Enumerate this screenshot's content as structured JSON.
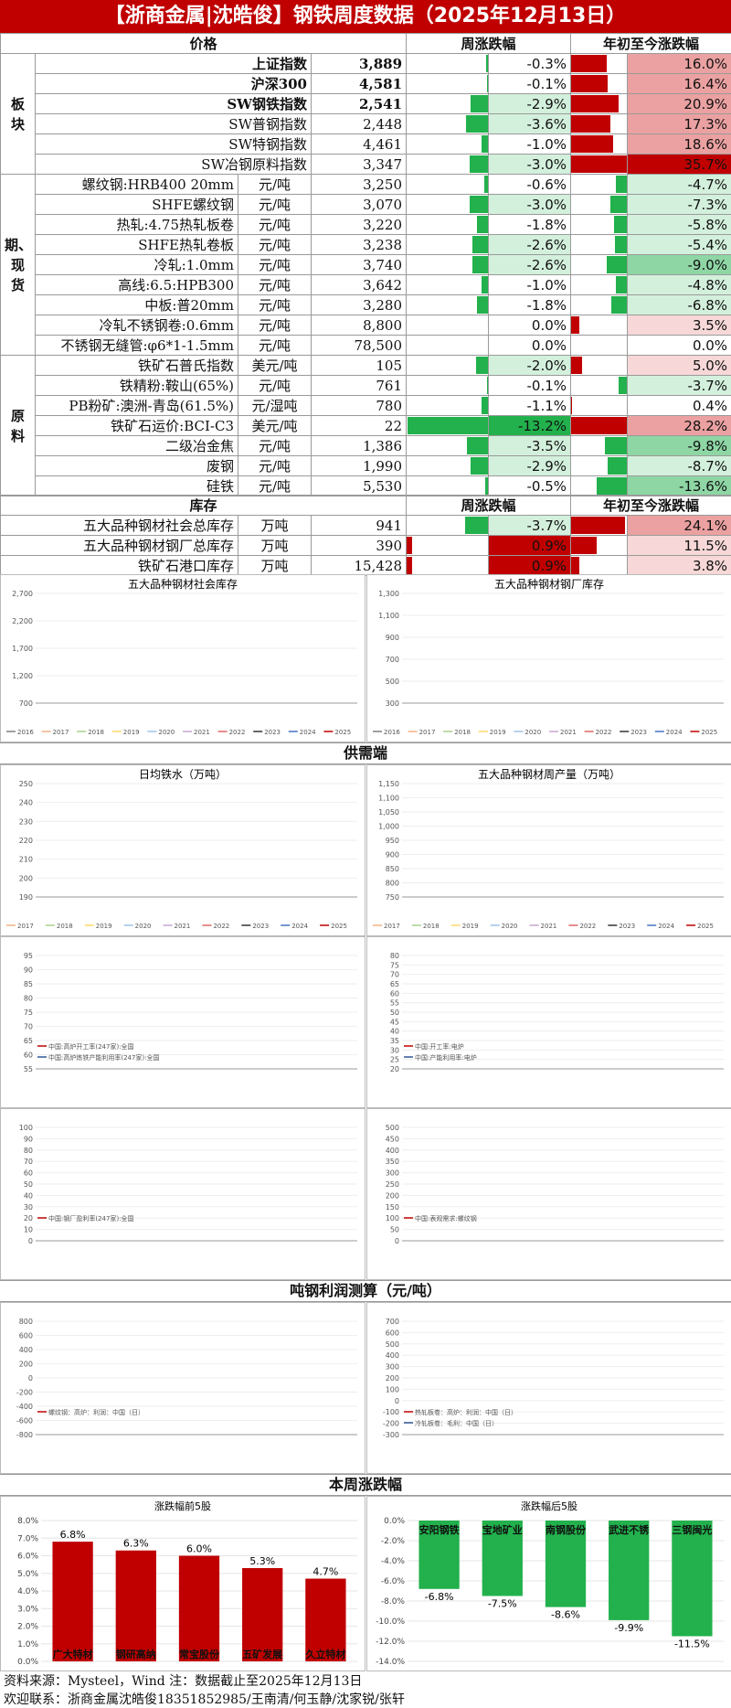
{
  "header": {
    "title": "【浙商金属|沈皓俊】钢铁周度数据（2025年12月13日）"
  },
  "table_head": {
    "price": "价格",
    "weekly": "周涨跌幅",
    "ytd": "年初至今涨跌幅"
  },
  "groups": {
    "board": "板块",
    "futures": "期、现货",
    "raw": "原料"
  },
  "colors": {
    "red": "#c00000",
    "green": "#22b14c",
    "pinkLight": "#f7d7d7",
    "pinkMid": "#eba1a1",
    "greenLight": "#d3f0dc",
    "greenMid": "#8ed6a4"
  },
  "rows": [
    {
      "name": "上证指数",
      "unit": "",
      "value": "3,889",
      "w": "-0.3%",
      "y": "16.0%",
      "wv": -0.3,
      "yv": 16.0,
      "bold": true,
      "grp": "board"
    },
    {
      "name": "沪深300",
      "unit": "",
      "value": "4,581",
      "w": "-0.1%",
      "y": "16.4%",
      "wv": -0.1,
      "yv": 16.4,
      "bold": true,
      "grp": "board"
    },
    {
      "name": "SW钢铁指数",
      "unit": "",
      "value": "2,541",
      "w": "-2.9%",
      "y": "20.9%",
      "wv": -2.9,
      "yv": 20.9,
      "bold": true,
      "grp": "board"
    },
    {
      "name": "SW普钢指数",
      "unit": "",
      "value": "2,448",
      "w": "-3.6%",
      "y": "17.3%",
      "wv": -3.6,
      "yv": 17.3,
      "bold": false,
      "grp": "board"
    },
    {
      "name": "SW特钢指数",
      "unit": "",
      "value": "4,461",
      "w": "-1.0%",
      "y": "18.6%",
      "wv": -1.0,
      "yv": 18.6,
      "bold": false,
      "grp": "board"
    },
    {
      "name": "SW冶钢原料指数",
      "unit": "",
      "value": "3,347",
      "w": "-3.0%",
      "y": "35.7%",
      "wv": -3.0,
      "yv": 35.7,
      "bold": false,
      "grp": "board"
    },
    {
      "name": "螺纹钢:HRB400 20mm",
      "unit": "元/吨",
      "value": "3,250",
      "w": "-0.6%",
      "y": "-4.7%",
      "wv": -0.6,
      "yv": -4.7,
      "bold": false,
      "grp": "futures"
    },
    {
      "name": "SHFE螺纹钢",
      "unit": "元/吨",
      "value": "3,070",
      "w": "-3.0%",
      "y": "-7.3%",
      "wv": -3.0,
      "yv": -7.3,
      "bold": false,
      "grp": "futures"
    },
    {
      "name": "热轧:4.75热轧板卷",
      "unit": "元/吨",
      "value": "3,220",
      "w": "-1.8%",
      "y": "-5.8%",
      "wv": -1.8,
      "yv": -5.8,
      "bold": false,
      "grp": "futures"
    },
    {
      "name": "SHFE热轧卷板",
      "unit": "元/吨",
      "value": "3,238",
      "w": "-2.6%",
      "y": "-5.4%",
      "wv": -2.6,
      "yv": -5.4,
      "bold": false,
      "grp": "futures"
    },
    {
      "name": "冷轧:1.0mm",
      "unit": "元/吨",
      "value": "3,740",
      "w": "-2.6%",
      "y": "-9.0%",
      "wv": -2.6,
      "yv": -9.0,
      "bold": false,
      "grp": "futures"
    },
    {
      "name": "高线:6.5:HPB300",
      "unit": "元/吨",
      "value": "3,642",
      "w": "-1.0%",
      "y": "-4.8%",
      "wv": -1.0,
      "yv": -4.8,
      "bold": false,
      "grp": "futures"
    },
    {
      "name": "中板:普20mm",
      "unit": "元/吨",
      "value": "3,280",
      "w": "-1.8%",
      "y": "-6.8%",
      "wv": -1.8,
      "yv": -6.8,
      "bold": false,
      "grp": "futures"
    },
    {
      "name": "冷轧不锈钢卷:0.6mm",
      "unit": "元/吨",
      "value": "8,800",
      "w": "0.0%",
      "y": "3.5%",
      "wv": 0.0,
      "yv": 3.5,
      "bold": false,
      "grp": "futures"
    },
    {
      "name": "不锈钢无缝管:φ6*1-1.5mm",
      "unit": "元/吨",
      "value": "78,500",
      "w": "0.0%",
      "y": "0.0%",
      "wv": 0.0,
      "yv": 0.0,
      "bold": false,
      "grp": "futures"
    },
    {
      "name": "铁矿石普氏指数",
      "unit": "美元/吨",
      "value": "105",
      "w": "-2.0%",
      "y": "5.0%",
      "wv": -2.0,
      "yv": 5.0,
      "bold": false,
      "grp": "raw"
    },
    {
      "name": "铁精粉:鞍山(65%)",
      "unit": "元/吨",
      "value": "761",
      "w": "-0.1%",
      "y": "-3.7%",
      "wv": -0.1,
      "yv": -3.7,
      "bold": false,
      "grp": "raw"
    },
    {
      "name": "PB粉矿:澳洲-青岛(61.5%)",
      "unit": "元/湿吨",
      "value": "780",
      "w": "-1.1%",
      "y": "0.4%",
      "wv": -1.1,
      "yv": 0.4,
      "bold": false,
      "grp": "raw"
    },
    {
      "name": "铁矿石运价:BCI-C3",
      "unit": "美元/吨",
      "value": "22",
      "w": "-13.2%",
      "y": "28.2%",
      "wv": -13.2,
      "yv": 28.2,
      "bold": false,
      "grp": "raw"
    },
    {
      "name": "二级冶金焦",
      "unit": "元/吨",
      "value": "1,386",
      "w": "-3.5%",
      "y": "-9.8%",
      "wv": -3.5,
      "yv": -9.8,
      "bold": false,
      "grp": "raw"
    },
    {
      "name": "废钢",
      "unit": "元/吨",
      "value": "1,990",
      "w": "-2.9%",
      "y": "-8.7%",
      "wv": -2.9,
      "yv": -8.7,
      "bold": false,
      "grp": "raw"
    },
    {
      "name": "硅铁",
      "unit": "元/吨",
      "value": "5,530",
      "w": "-0.5%",
      "y": "-13.6%",
      "wv": -0.5,
      "yv": -13.6,
      "bold": false,
      "grp": "raw"
    }
  ],
  "inventory": {
    "head": "库存",
    "weekly": "周涨跌幅",
    "ytd": "年初至今涨跌幅",
    "rows": [
      {
        "name": "五大品种钢材社会总库存",
        "unit": "万吨",
        "value": "941",
        "w": "-3.7%",
        "y": "24.1%",
        "wv": -3.7,
        "yv": 24.1
      },
      {
        "name": "五大品种钢材钢厂总库存",
        "unit": "万吨",
        "value": "390",
        "w": "0.9%",
        "y": "11.5%",
        "wv": 0.9,
        "yv": 11.5
      },
      {
        "name": "铁矿石港口库存",
        "unit": "万吨",
        "value": "15,428",
        "w": "0.9%",
        "y": "3.8%",
        "wv": 0.9,
        "yv": 3.8
      }
    ]
  },
  "sections": {
    "supply": "供需端",
    "profit": "吨钢利润测算（元/吨）",
    "weekly": "本周涨跌幅"
  },
  "chart_data": [
    {
      "type": "line",
      "title": "五大品种钢材社会库存",
      "ylim": [
        700,
        2700
      ],
      "yticks": [
        "2,700",
        "2,200",
        "1,700",
        "1,200",
        "700"
      ],
      "legend": [
        "2016",
        "2017",
        "2018",
        "2019",
        "2020",
        "2021",
        "2022",
        "2023",
        "2024",
        "2025"
      ]
    },
    {
      "type": "line",
      "title": "五大品种钢材钢厂库存",
      "ylim": [
        300,
        1300
      ],
      "yticks": [
        "1,300",
        "1,100",
        "900",
        "700",
        "500",
        "300"
      ],
      "legend": [
        "2016",
        "2017",
        "2018",
        "2019",
        "2020",
        "2021",
        "2022",
        "2023",
        "2024",
        "2025"
      ]
    },
    {
      "type": "line",
      "title": "日均铁水（万吨）",
      "ylim": [
        190,
        250
      ],
      "yticks": [
        "250",
        "240",
        "230",
        "220",
        "210",
        "200",
        "190"
      ],
      "legend": [
        "2017",
        "2018",
        "2019",
        "2020",
        "2021",
        "2022",
        "2023",
        "2024",
        "2025"
      ]
    },
    {
      "type": "line",
      "title": "五大品种钢材周产量（万吨）",
      "ylim": [
        750,
        1150
      ],
      "yticks": [
        "1,150",
        "1,100",
        "1,050",
        "1,000",
        "950",
        "900",
        "850",
        "800",
        "750"
      ],
      "legend": [
        "2017",
        "2018",
        "2019",
        "2020",
        "2021",
        "2022",
        "2023",
        "2024",
        "2025"
      ]
    },
    {
      "type": "line",
      "title": "",
      "ylim": [
        55,
        95
      ],
      "yticks": [
        "95",
        "90",
        "85",
        "80",
        "75",
        "70",
        "65",
        "60",
        "55"
      ],
      "legend": [
        "中国:高炉开工率(247家):全国",
        "中国:高炉炼铁产能利用率(247家):全国"
      ]
    },
    {
      "type": "line",
      "title": "",
      "ylim": [
        20,
        80
      ],
      "yticks": [
        "80",
        "75",
        "70",
        "65",
        "60",
        "55",
        "50",
        "45",
        "40",
        "35",
        "30",
        "25",
        "20"
      ],
      "legend": [
        "中国:开工率:电炉",
        "中国:产能利用率:电炉"
      ]
    },
    {
      "type": "line",
      "title": "",
      "ylim": [
        0,
        100
      ],
      "yticks": [
        "100",
        "90",
        "80",
        "70",
        "60",
        "50",
        "40",
        "30",
        "20",
        "10",
        "0"
      ],
      "legend": [
        "中国:钢厂盈利率(247家):全国"
      ]
    },
    {
      "type": "line",
      "title": "",
      "ylim": [
        0,
        500
      ],
      "yticks": [
        "500",
        "450",
        "400",
        "350",
        "300",
        "250",
        "200",
        "150",
        "100",
        "50",
        "0"
      ],
      "legend": [
        "中国:表观需求:螺纹钢"
      ]
    },
    {
      "type": "line",
      "title": "",
      "ylim": [
        -800,
        800
      ],
      "yticks": [
        "800",
        "600",
        "400",
        "200",
        "0",
        "-200",
        "-400",
        "-600",
        "-800"
      ],
      "legend": [
        "螺纹钢：高炉：利润：中国（日）"
      ]
    },
    {
      "type": "line",
      "title": "",
      "ylim": [
        -300,
        700
      ],
      "yticks": [
        "700",
        "600",
        "500",
        "400",
        "300",
        "200",
        "100",
        "0",
        "-100",
        "-200",
        "-300"
      ],
      "legend": [
        "热轧板卷：高炉：利润：中国（日）",
        "冷轧板卷：毛利：中国（日）"
      ]
    },
    {
      "type": "bar",
      "title": "涨跌幅前5股",
      "categories": [
        "广大特材",
        "钢研高纳",
        "常宝股份",
        "五矿发展",
        "久立特材"
      ],
      "values": [
        6.8,
        6.3,
        6.0,
        5.3,
        4.7
      ],
      "labels": [
        "6.8%",
        "6.3%",
        "6.0%",
        "5.3%",
        "4.7%"
      ],
      "ylim": [
        0,
        8
      ],
      "yticks": [
        "8.0%",
        "7.0%",
        "6.0%",
        "5.0%",
        "4.0%",
        "3.0%",
        "2.0%",
        "1.0%",
        "0.0%"
      ]
    },
    {
      "type": "bar",
      "title": "涨跌幅后5股",
      "categories": [
        "安阳钢铁",
        "宝地矿业",
        "南钢股份",
        "武进不锈",
        "三钢闽光"
      ],
      "values": [
        -6.8,
        -7.5,
        -8.6,
        -9.9,
        -11.5
      ],
      "labels": [
        "-6.8%",
        "-7.5%",
        "-8.6%",
        "-9.9%",
        "-11.5%"
      ],
      "ylim": [
        -14,
        0
      ],
      "yticks": [
        "0.0%",
        "-2.0%",
        "-4.0%",
        "-6.0%",
        "-8.0%",
        "-10.0%",
        "-12.0%",
        "-14.0%"
      ]
    }
  ],
  "footer": {
    "source": "资料来源：Mysteel，Wind     注：数据截止至2025年12月13日",
    "contact": "欢迎联系：浙商金属沈皓俊18351852985/王南清/何玉静/沈家锐/张轩"
  }
}
